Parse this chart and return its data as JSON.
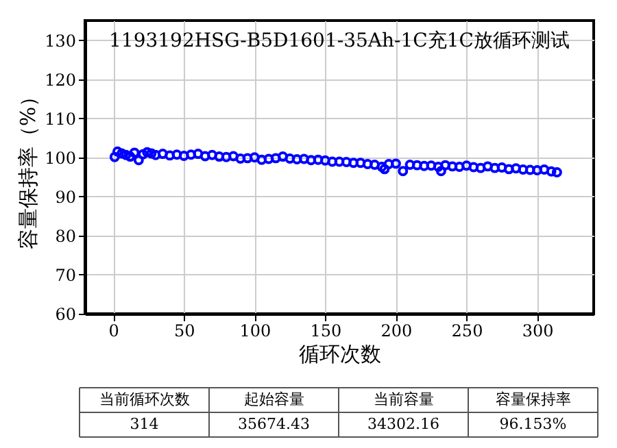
{
  "chart_data": {
    "type": "scatter",
    "title": "1193192HSG-B5D1601-35Ah-1C充1C放循环测试",
    "xlabel": "循环次数",
    "ylabel": "容量保持率（%）",
    "x": [
      1,
      3,
      6,
      9,
      12,
      15,
      18,
      21,
      24,
      27,
      30,
      35,
      40,
      45,
      50,
      55,
      60,
      65,
      70,
      75,
      80,
      85,
      90,
      95,
      100,
      105,
      110,
      115,
      120,
      125,
      130,
      135,
      140,
      145,
      150,
      155,
      160,
      165,
      170,
      175,
      180,
      185,
      190,
      192,
      195,
      200,
      205,
      210,
      215,
      220,
      225,
      230,
      232,
      235,
      240,
      245,
      250,
      255,
      260,
      265,
      270,
      275,
      280,
      285,
      290,
      295,
      300,
      305,
      310,
      314
    ],
    "series": [
      {
        "color": "#0000ff",
        "values": [
          100.1,
          101.5,
          101.0,
          100.6,
          100.2,
          101.2,
          99.3,
          100.8,
          101.3,
          101.0,
          100.6,
          100.9,
          100.5,
          100.7,
          100.4,
          100.7,
          100.9,
          100.3,
          100.6,
          100.2,
          100.1,
          100.3,
          99.7,
          99.8,
          100.0,
          99.4,
          99.6,
          99.8,
          100.2,
          99.7,
          99.5,
          99.6,
          99.3,
          99.4,
          99.2,
          98.9,
          98.9,
          98.8,
          98.6,
          98.6,
          98.3,
          98.1,
          97.6,
          97.0,
          98.3,
          98.4,
          96.5,
          98.1,
          98.0,
          97.8,
          97.9,
          97.6,
          96.5,
          98.0,
          97.7,
          97.6,
          97.9,
          97.5,
          97.3,
          97.7,
          97.3,
          97.4,
          97.0,
          97.2,
          96.9,
          96.8,
          96.7,
          96.9,
          96.4,
          96.2
        ]
      }
    ],
    "xlim": [
      -20,
      340
    ],
    "xticks": [
      0,
      50,
      100,
      150,
      200,
      250,
      300
    ],
    "ylim": [
      60,
      135
    ],
    "yticks": [
      60,
      70,
      80,
      90,
      100,
      110,
      120,
      130
    ],
    "grid": true,
    "marker": "circle",
    "annotations": [
      "当前循环次数",
      "起始容量",
      "当前容量",
      "容量保持率",
      "314",
      "35674.43",
      "34302.16",
      "96.153%"
    ]
  }
}
